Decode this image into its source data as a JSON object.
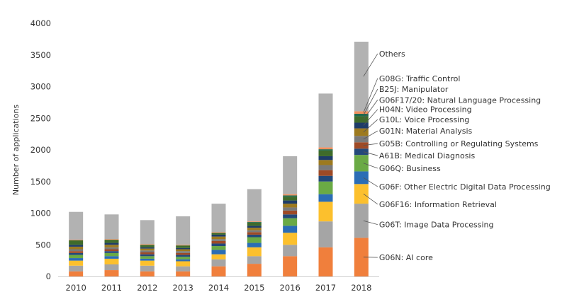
{
  "chart_data": {
    "type": "bar",
    "stacked": true,
    "title": "",
    "xlabel": "",
    "ylabel": "Number of applications",
    "ylim": [
      0,
      4000
    ],
    "yticks": [
      0,
      500,
      1000,
      1500,
      2000,
      2500,
      3000,
      3500,
      4000
    ],
    "grid": false,
    "categories": [
      "2010",
      "2011",
      "2012",
      "2013",
      "2014",
      "2015",
      "2016",
      "2017",
      "2018"
    ],
    "series": [
      {
        "name": "G06N: AI core",
        "color": "#f07f3c",
        "values": [
          80,
          100,
          80,
          80,
          160,
          200,
          320,
          460,
          610
        ]
      },
      {
        "name": "G06T: Image Data Processing",
        "color": "#a5a5a5",
        "values": [
          90,
          90,
          90,
          80,
          110,
          120,
          180,
          410,
          540
        ]
      },
      {
        "name": "G06F16: Information Retrieval",
        "color": "#fcc02d",
        "values": [
          80,
          90,
          80,
          80,
          80,
          140,
          190,
          310,
          310
        ]
      },
      {
        "name": "G06F: Other Electric Digital Data Processing",
        "color": "#2b6db5",
        "values": [
          40,
          40,
          30,
          30,
          70,
          70,
          110,
          120,
          200
        ]
      },
      {
        "name": "G06Q: Business",
        "color": "#6aaa45",
        "values": [
          50,
          50,
          40,
          40,
          60,
          90,
          120,
          200,
          260
        ]
      },
      {
        "name": "A61B: Medical Diagnosis",
        "color": "#23497a",
        "values": [
          30,
          30,
          30,
          30,
          40,
          40,
          60,
          90,
          100
        ]
      },
      {
        "name": "G05B: Controlling or Regulating Systems",
        "color": "#9e4a26",
        "values": [
          30,
          30,
          30,
          30,
          40,
          40,
          60,
          90,
          100
        ]
      },
      {
        "name": "G01N: Material Analysis",
        "color": "#7a7a7a",
        "values": [
          30,
          30,
          30,
          30,
          30,
          30,
          50,
          80,
          100
        ]
      },
      {
        "name": "G10L: Voice Processing",
        "color": "#9d7a1f",
        "values": [
          40,
          40,
          30,
          30,
          40,
          40,
          60,
          80,
          120
        ]
      },
      {
        "name": "H04N: Video Processing",
        "color": "#1e3c68",
        "values": [
          30,
          30,
          20,
          20,
          30,
          30,
          50,
          60,
          90
        ]
      },
      {
        "name": "G06F17/20: Natural Language Processing",
        "color": "#3f6b2a",
        "values": [
          70,
          50,
          40,
          40,
          30,
          50,
          60,
          90,
          100
        ]
      },
      {
        "name": "B25J: Manipulator",
        "color": "#1f6a4e",
        "values": [
          0,
          0,
          0,
          0,
          0,
          10,
          20,
          20,
          40
        ]
      },
      {
        "name": "G08G: Traffic Control",
        "color": "#f0905e",
        "values": [
          10,
          10,
          10,
          10,
          10,
          10,
          20,
          30,
          40
        ]
      },
      {
        "name": "Others",
        "color": "#b2b2b2",
        "values": [
          440,
          390,
          380,
          450,
          450,
          510,
          600,
          850,
          1100
        ]
      }
    ],
    "annotations": [
      {
        "text": "Others",
        "series": "Others",
        "label_value": 3520
      },
      {
        "text": "G08G: Traffic Control",
        "series": "G08G: Traffic Control",
        "label_value": 3130
      },
      {
        "text": "B25J: Manipulator",
        "series": "B25J: Manipulator",
        "label_value": 2960
      },
      {
        "text": "G06F17/20: Natural Language Processing",
        "series": "G06F17/20: Natural Language Processing",
        "label_value": 2790
      },
      {
        "text": "H04N: Video Processing",
        "series": "H04N: Video Processing",
        "label_value": 2640
      },
      {
        "text": "G10L: Voice Processing",
        "series": "G10L: Voice Processing",
        "label_value": 2480
      },
      {
        "text": "G01N: Material Analysis",
        "series": "G01N: Material Analysis",
        "label_value": 2300
      },
      {
        "text": "G05B: Controlling or Regulating Systems",
        "series": "G05B: Controlling or Regulating Systems",
        "label_value": 2100
      },
      {
        "text": "A61B: Medical Diagnosis",
        "series": "A61B: Medical Diagnosis",
        "label_value": 1910
      },
      {
        "text": "G06Q: Business",
        "series": "G06Q: Business",
        "label_value": 1710
      },
      {
        "text": "G06F: Other Electric Digital Data Processing",
        "series": "G06F: Other Electric Digital Data Processing",
        "label_value": 1420
      },
      {
        "text": "G06F16: Information Retrieval",
        "series": "G06F16: Information Retrieval",
        "label_value": 1140
      },
      {
        "text": "G06T: Image Data Processing",
        "series": "G06T: Image Data Processing",
        "label_value": 820
      },
      {
        "text": "G06N: AI core",
        "series": "G06N: AI core",
        "label_value": 300,
        "color": "#e8413c"
      }
    ]
  }
}
